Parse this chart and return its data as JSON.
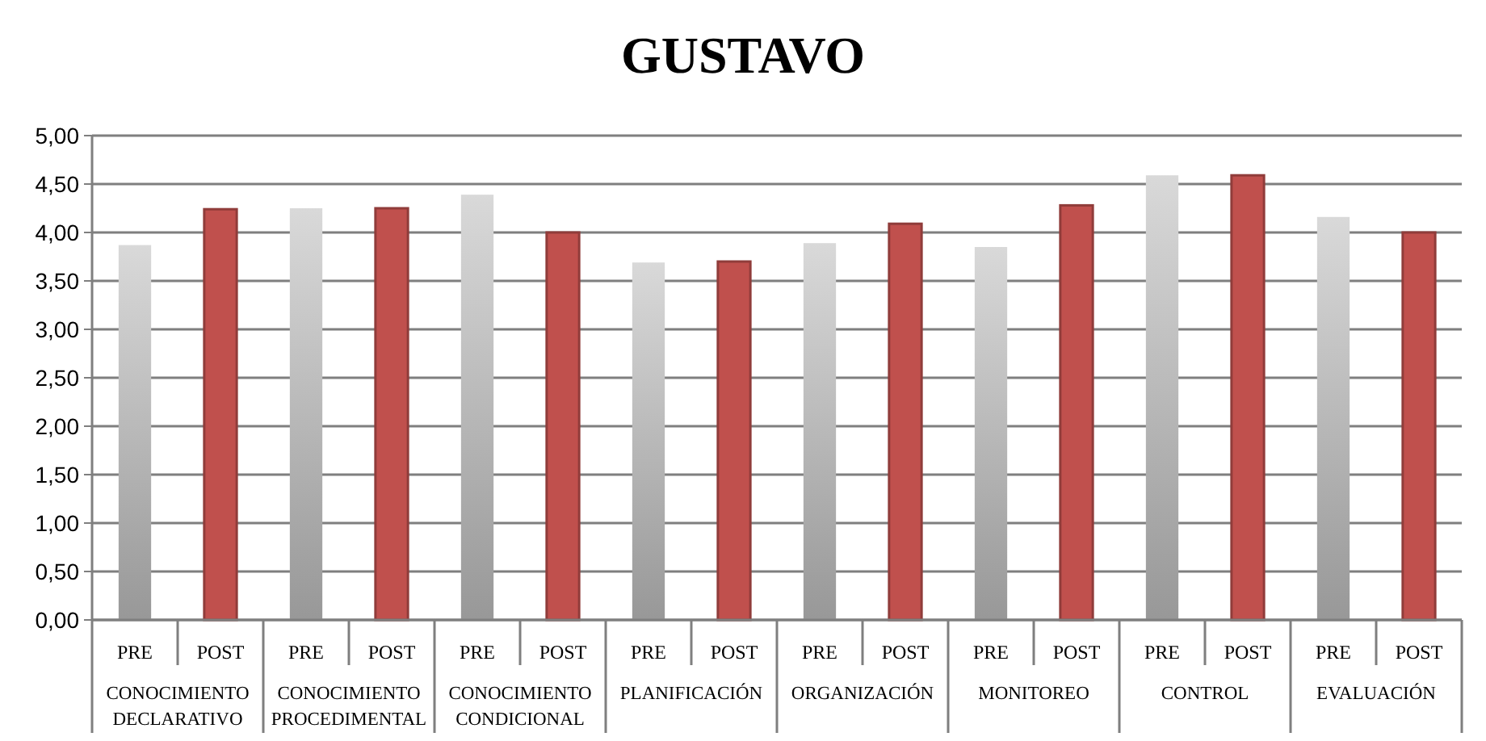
{
  "chart_data": {
    "type": "bar",
    "title": "GUSTAVO",
    "categories": [
      "PRE",
      "POST",
      "PRE",
      "POST",
      "PRE",
      "POST",
      "PRE",
      "POST",
      "PRE",
      "POST",
      "PRE",
      "POST",
      "PRE",
      "POST",
      "PRE",
      "POST"
    ],
    "values": [
      3.87,
      4.24,
      4.25,
      4.25,
      4.39,
      4.0,
      3.69,
      3.7,
      3.89,
      4.09,
      3.85,
      4.28,
      4.59,
      4.59,
      4.16,
      4.0
    ],
    "colors": [
      "#d9d9d9",
      "#c0504d",
      "#d9d9d9",
      "#c0504d",
      "#d9d9d9",
      "#c0504d",
      "#d9d9d9",
      "#c0504d",
      "#d9d9d9",
      "#c0504d",
      "#d9d9d9",
      "#c0504d",
      "#d9d9d9",
      "#c0504d",
      "#d9d9d9",
      "#c0504d"
    ],
    "annotations": [
      "CONOCIMIENTO DECLARATIVO",
      "CONOCIMIENTO PROCEDIMENTAL",
      "CONOCIMIENTO CONDICIONAL",
      "PLANIFICACIÓN",
      "ORGANIZACIÓN",
      "MONITOREO",
      "CONTROL",
      "EVALUACIÓN"
    ],
    "ylim": [
      0,
      5
    ],
    "yticks": [
      {
        "value": 0,
        "label": "0,00"
      },
      {
        "value": 0.5,
        "label": "0,50"
      },
      {
        "value": 1,
        "label": "1,00"
      },
      {
        "value": 1.5,
        "label": "1,50"
      },
      {
        "value": 2,
        "label": "2,00"
      },
      {
        "value": 2.5,
        "label": "2,50"
      },
      {
        "value": 3,
        "label": "3,00"
      },
      {
        "value": 3.5,
        "label": "3,50"
      },
      {
        "value": 4,
        "label": "4,00"
      },
      {
        "value": 4.5,
        "label": "4,50"
      },
      {
        "value": 5,
        "label": "5,00"
      }
    ],
    "grid": "y"
  }
}
